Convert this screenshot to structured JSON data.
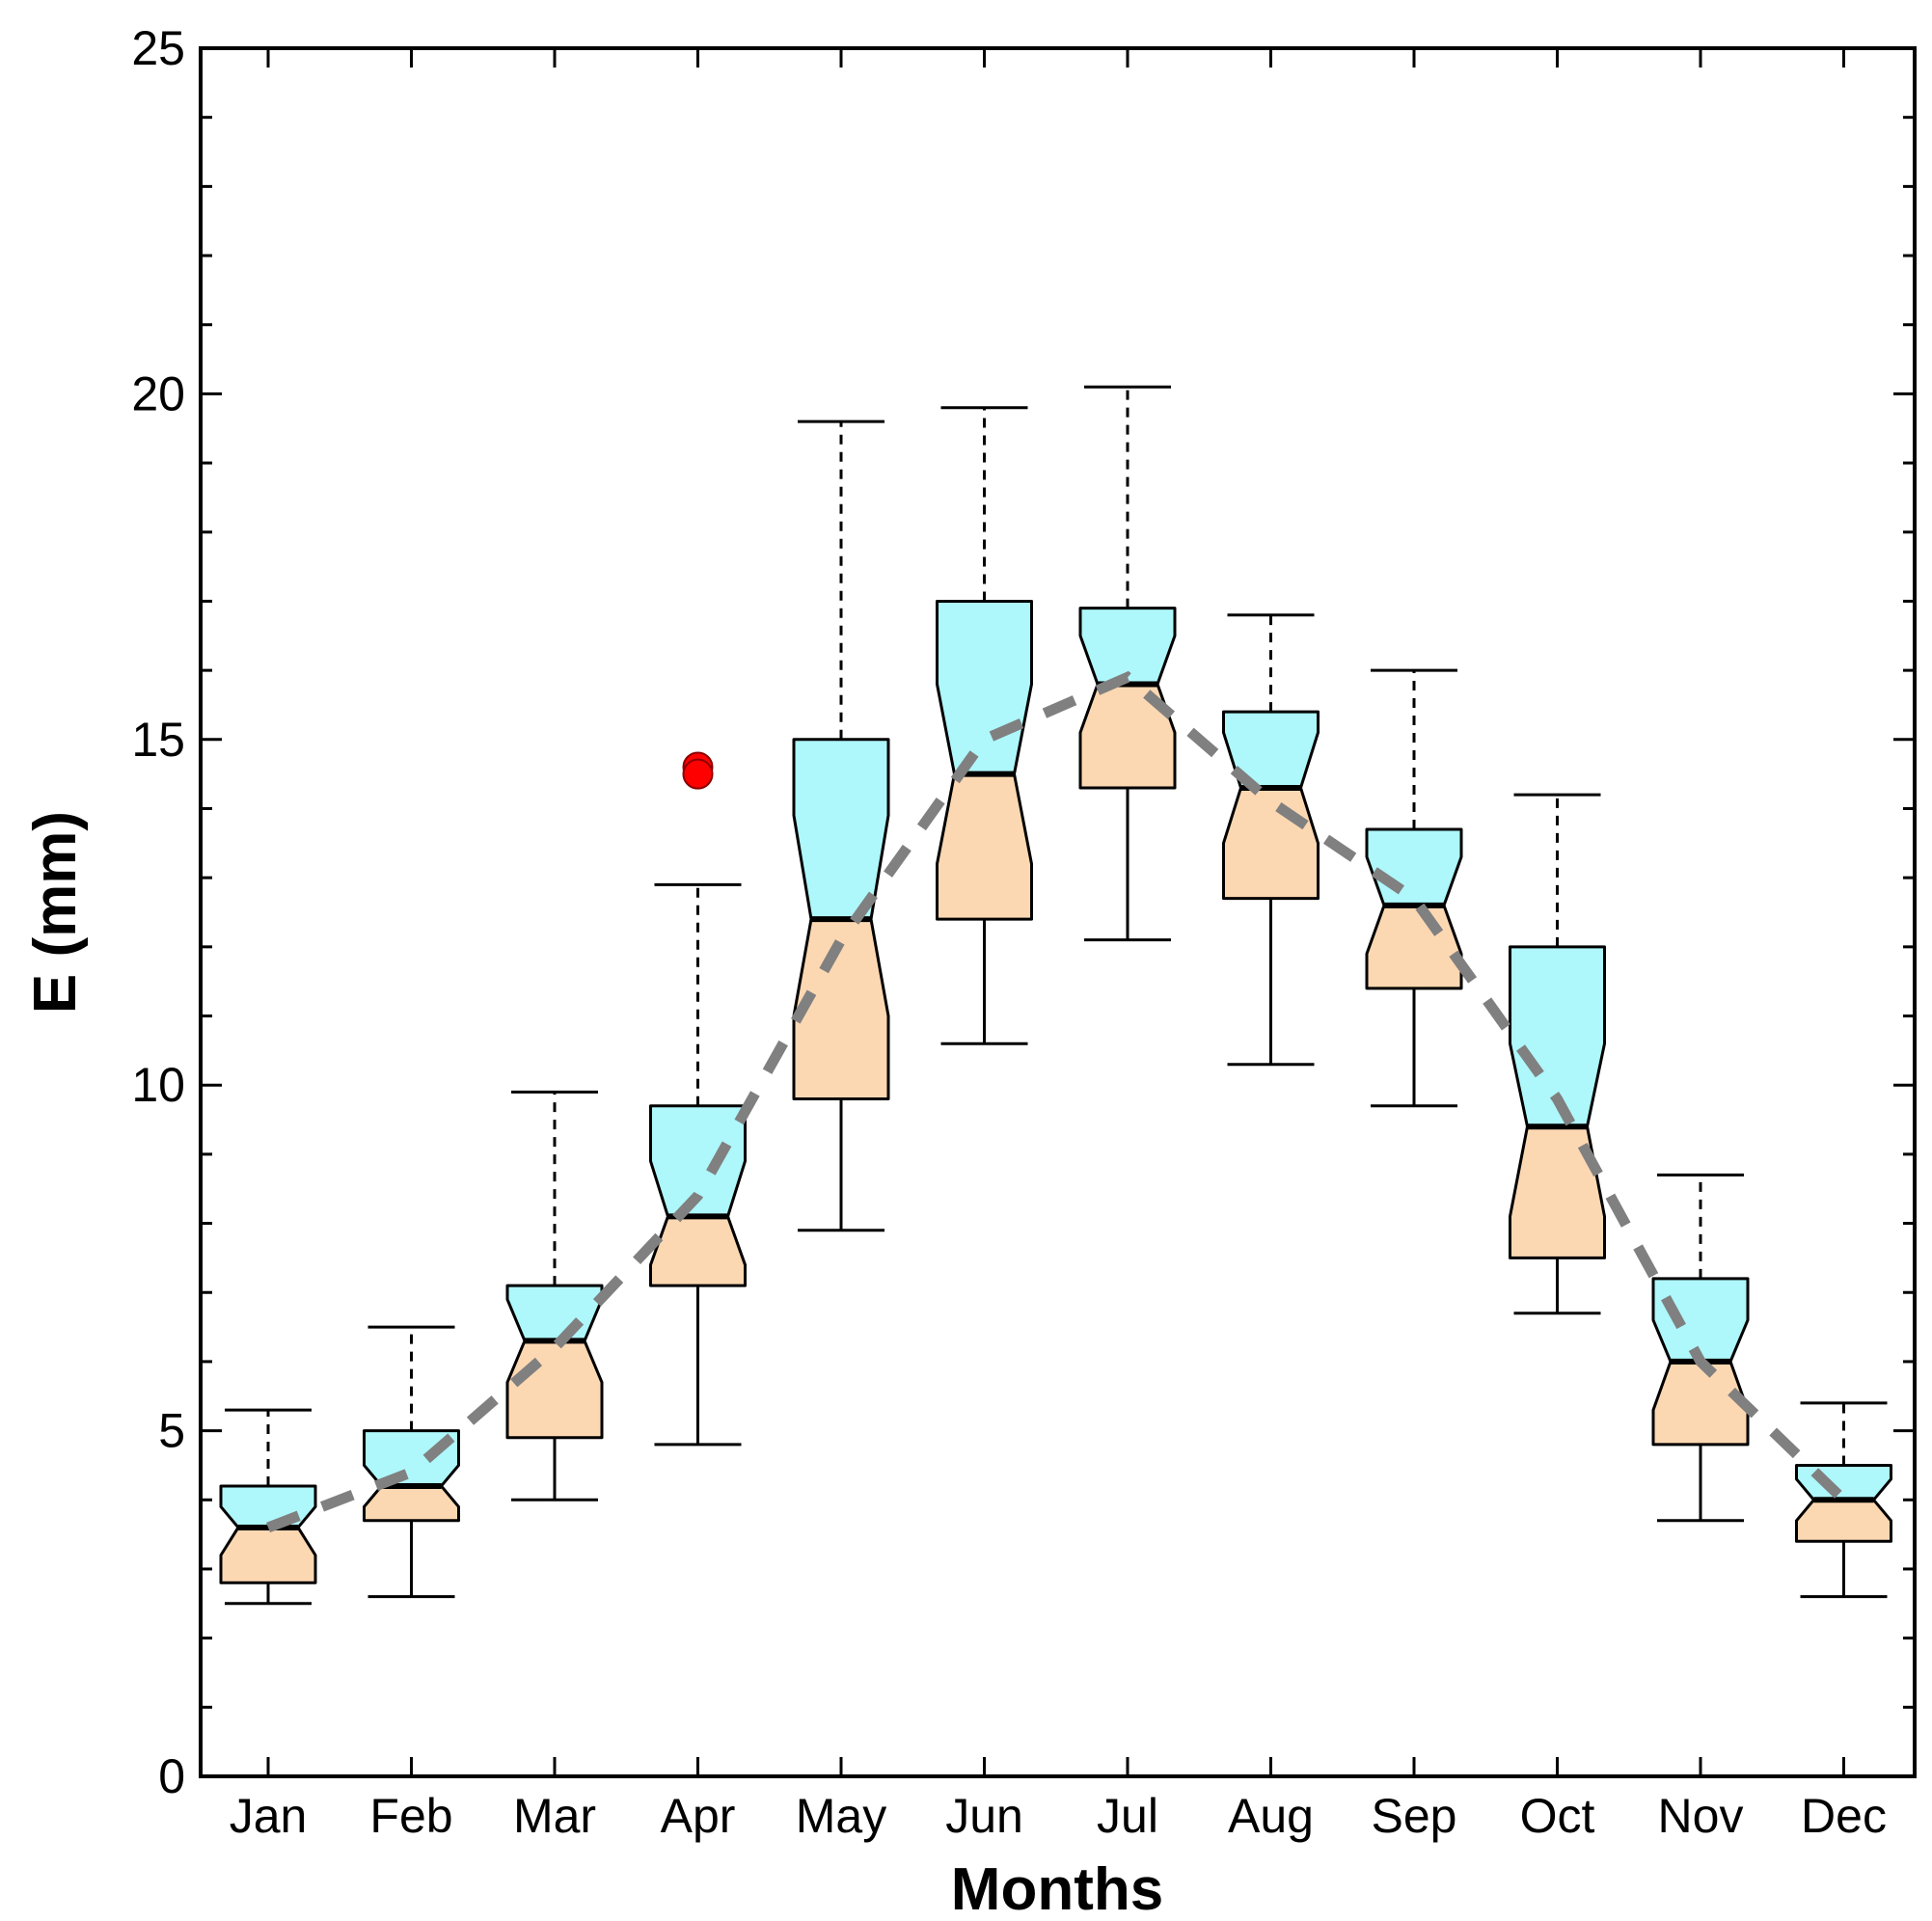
{
  "chart_data": {
    "type": "box",
    "title": "",
    "xlabel": "Months",
    "ylabel": "E (mm)",
    "ylim": [
      0,
      25
    ],
    "yticks": [
      0,
      5,
      10,
      15,
      20,
      25
    ],
    "categories": [
      "Jan",
      "Feb",
      "Mar",
      "Apr",
      "May",
      "Jun",
      "Jul",
      "Aug",
      "Sep",
      "Oct",
      "Nov",
      "Dec"
    ],
    "boxes": [
      {
        "min": 2.5,
        "q1": 2.8,
        "median": 3.6,
        "q3": 4.2,
        "max": 5.3,
        "notch_low": 3.2,
        "notch_high": 3.9,
        "outliers": []
      },
      {
        "min": 2.6,
        "q1": 3.7,
        "median": 4.2,
        "q3": 5.0,
        "max": 6.5,
        "notch_low": 3.9,
        "notch_high": 4.5,
        "outliers": []
      },
      {
        "min": 4.0,
        "q1": 4.9,
        "median": 6.3,
        "q3": 7.1,
        "max": 9.9,
        "notch_low": 5.7,
        "notch_high": 6.9,
        "outliers": []
      },
      {
        "min": 4.8,
        "q1": 7.1,
        "median": 8.1,
        "q3": 9.7,
        "max": 12.9,
        "notch_low": 7.4,
        "notch_high": 8.9,
        "outliers": [
          14.6,
          14.5
        ]
      },
      {
        "min": 7.9,
        "q1": 9.8,
        "median": 12.4,
        "q3": 15.0,
        "max": 19.6,
        "notch_low": 11.0,
        "notch_high": 13.9,
        "outliers": []
      },
      {
        "min": 10.6,
        "q1": 12.4,
        "median": 14.5,
        "q3": 17.0,
        "max": 19.8,
        "notch_low": 13.2,
        "notch_high": 15.8,
        "outliers": []
      },
      {
        "min": 12.1,
        "q1": 14.3,
        "median": 15.8,
        "q3": 16.9,
        "max": 20.1,
        "notch_low": 15.1,
        "notch_high": 16.5,
        "outliers": []
      },
      {
        "min": 10.3,
        "q1": 12.7,
        "median": 14.3,
        "q3": 15.4,
        "max": 16.8,
        "notch_low": 13.5,
        "notch_high": 15.1,
        "outliers": []
      },
      {
        "min": 9.7,
        "q1": 11.4,
        "median": 12.6,
        "q3": 13.7,
        "max": 16.0,
        "notch_low": 11.9,
        "notch_high": 13.3,
        "outliers": []
      },
      {
        "min": 6.7,
        "q1": 7.5,
        "median": 9.4,
        "q3": 12.0,
        "max": 14.2,
        "notch_low": 8.1,
        "notch_high": 10.6,
        "outliers": []
      },
      {
        "min": 3.7,
        "q1": 4.8,
        "median": 6.0,
        "q3": 7.2,
        "max": 8.7,
        "notch_low": 5.3,
        "notch_high": 6.6,
        "outliers": []
      },
      {
        "min": 2.6,
        "q1": 3.4,
        "median": 4.0,
        "q3": 4.5,
        "max": 5.4,
        "notch_low": 3.7,
        "notch_high": 4.3,
        "outliers": []
      }
    ],
    "mean_line": {
      "name": "mean",
      "style": "dashed",
      "values": [
        3.6,
        4.4,
        6.2,
        8.4,
        12.1,
        15.0,
        15.9,
        14.1,
        12.7,
        9.8,
        6.0,
        4.0
      ]
    },
    "colors": {
      "upper_box": "#aef7fb",
      "lower_box": "#fcd8b2",
      "outline": "#000000",
      "outlier": "#ff0000",
      "mean_line": "#808080"
    }
  }
}
